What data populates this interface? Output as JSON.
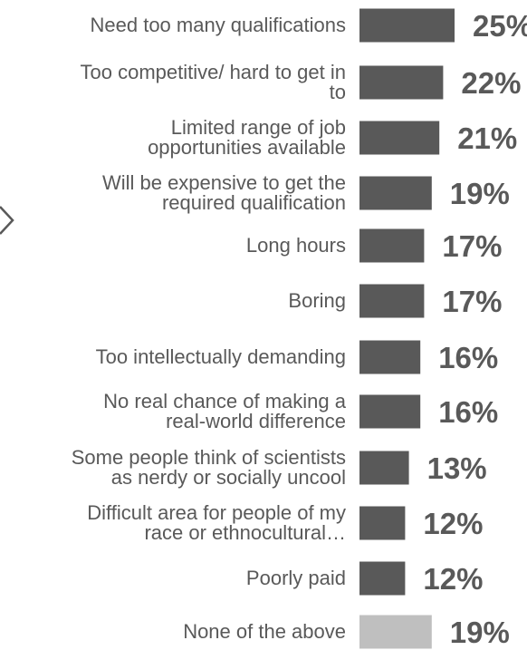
{
  "chart_data": {
    "type": "bar",
    "orientation": "horizontal",
    "categories": [
      [
        "Need too many qualifications"
      ],
      [
        "Too competitive/ hard to get in",
        "to"
      ],
      [
        "Limited range of job",
        "opportunities available"
      ],
      [
        "Will be expensive to get the",
        "required qualification"
      ],
      [
        "Long hours"
      ],
      [
        "Boring"
      ],
      [
        "Too intellectually demanding"
      ],
      [
        "No real chance of making a",
        "real-world difference"
      ],
      [
        "Some people think of scientists",
        "as nerdy or socially uncool"
      ],
      [
        "Difficult area for people of my",
        "race or ethnocultural…"
      ],
      [
        "Poorly paid"
      ],
      [
        "None of the above"
      ]
    ],
    "values": [
      25,
      22,
      21,
      19,
      17,
      17,
      16,
      16,
      13,
      12,
      12,
      19
    ],
    "value_labels": [
      "25%",
      "22%",
      "21%",
      "19%",
      "17%",
      "17%",
      "16%",
      "16%",
      "13%",
      "12%",
      "12%",
      "19%"
    ],
    "bar_colors": [
      "#595959",
      "#595959",
      "#595959",
      "#595959",
      "#595959",
      "#595959",
      "#595959",
      "#595959",
      "#595959",
      "#595959",
      "#595959",
      "#bfbfbf"
    ],
    "unit": "%",
    "grid": false,
    "legend": "none"
  },
  "icons": {
    "partial_arrow": "chevron-right-icon"
  }
}
